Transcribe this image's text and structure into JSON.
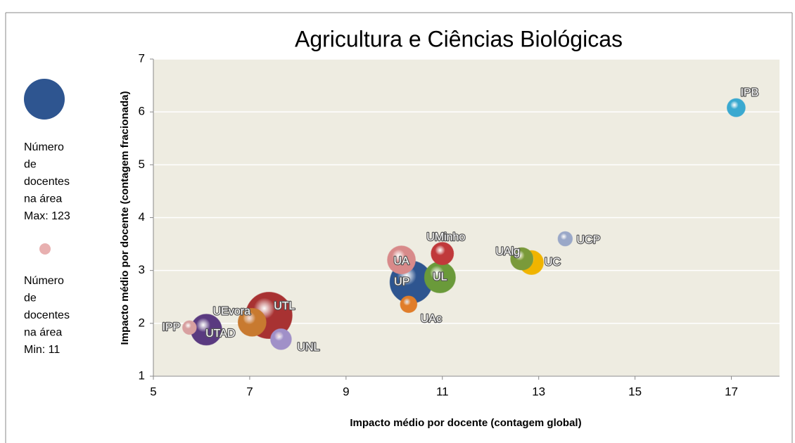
{
  "chart_data": {
    "type": "bubble",
    "title": "Agricultura e Ciências Biológicas",
    "x_label": "Impacto médio por docente (contagem global)",
    "y_label": "Impacto médio por docente (contagem fracionada)",
    "labels": [
      "IPB",
      "UCP",
      "UC",
      "UAlg",
      "UMinho",
      "UL",
      "UA",
      "UP",
      "UAc",
      "UTL",
      "UEvora",
      "UNL",
      "UTAD",
      "IPP"
    ],
    "x": [
      17.1,
      13.55,
      12.85,
      12.65,
      11.0,
      10.95,
      10.15,
      10.35,
      10.3,
      7.4,
      7.05,
      7.65,
      6.1,
      5.75
    ],
    "values": [
      6.08,
      3.6,
      3.15,
      3.22,
      3.32,
      2.87,
      3.2,
      2.78,
      2.36,
      2.15,
      2.02,
      1.7,
      1.88,
      1.92
    ],
    "sizes": [
      19,
      12,
      33,
      29,
      29,
      55,
      45,
      102,
      16,
      123,
      45,
      25,
      55,
      11
    ],
    "colors": [
      "#3aa9d0",
      "#9aa8c8",
      "#f0b400",
      "#7a9a3a",
      "#c0393b",
      "#6a9a3a",
      "#d88a8a",
      "#2e5590",
      "#e07d2a",
      "#a83232",
      "#c87a30",
      "#a090c8",
      "#5a3a80",
      "#d8a0a0"
    ],
    "xlim": [
      5,
      18
    ],
    "xticks": [
      5,
      7,
      9,
      11,
      13,
      15,
      17
    ],
    "ylim": [
      1,
      7
    ],
    "yticks": [
      1,
      2,
      3,
      4,
      5,
      6,
      7
    ],
    "grid": true,
    "legend": {
      "max_lines": [
        "Número",
        "de",
        "docentes",
        "na área",
        "Max: 123"
      ],
      "min_lines": [
        "Número",
        "de",
        "docentes",
        "na área",
        "Min: 11"
      ],
      "max_color": "#2e5590",
      "min_color": "#e8b0b0"
    }
  }
}
